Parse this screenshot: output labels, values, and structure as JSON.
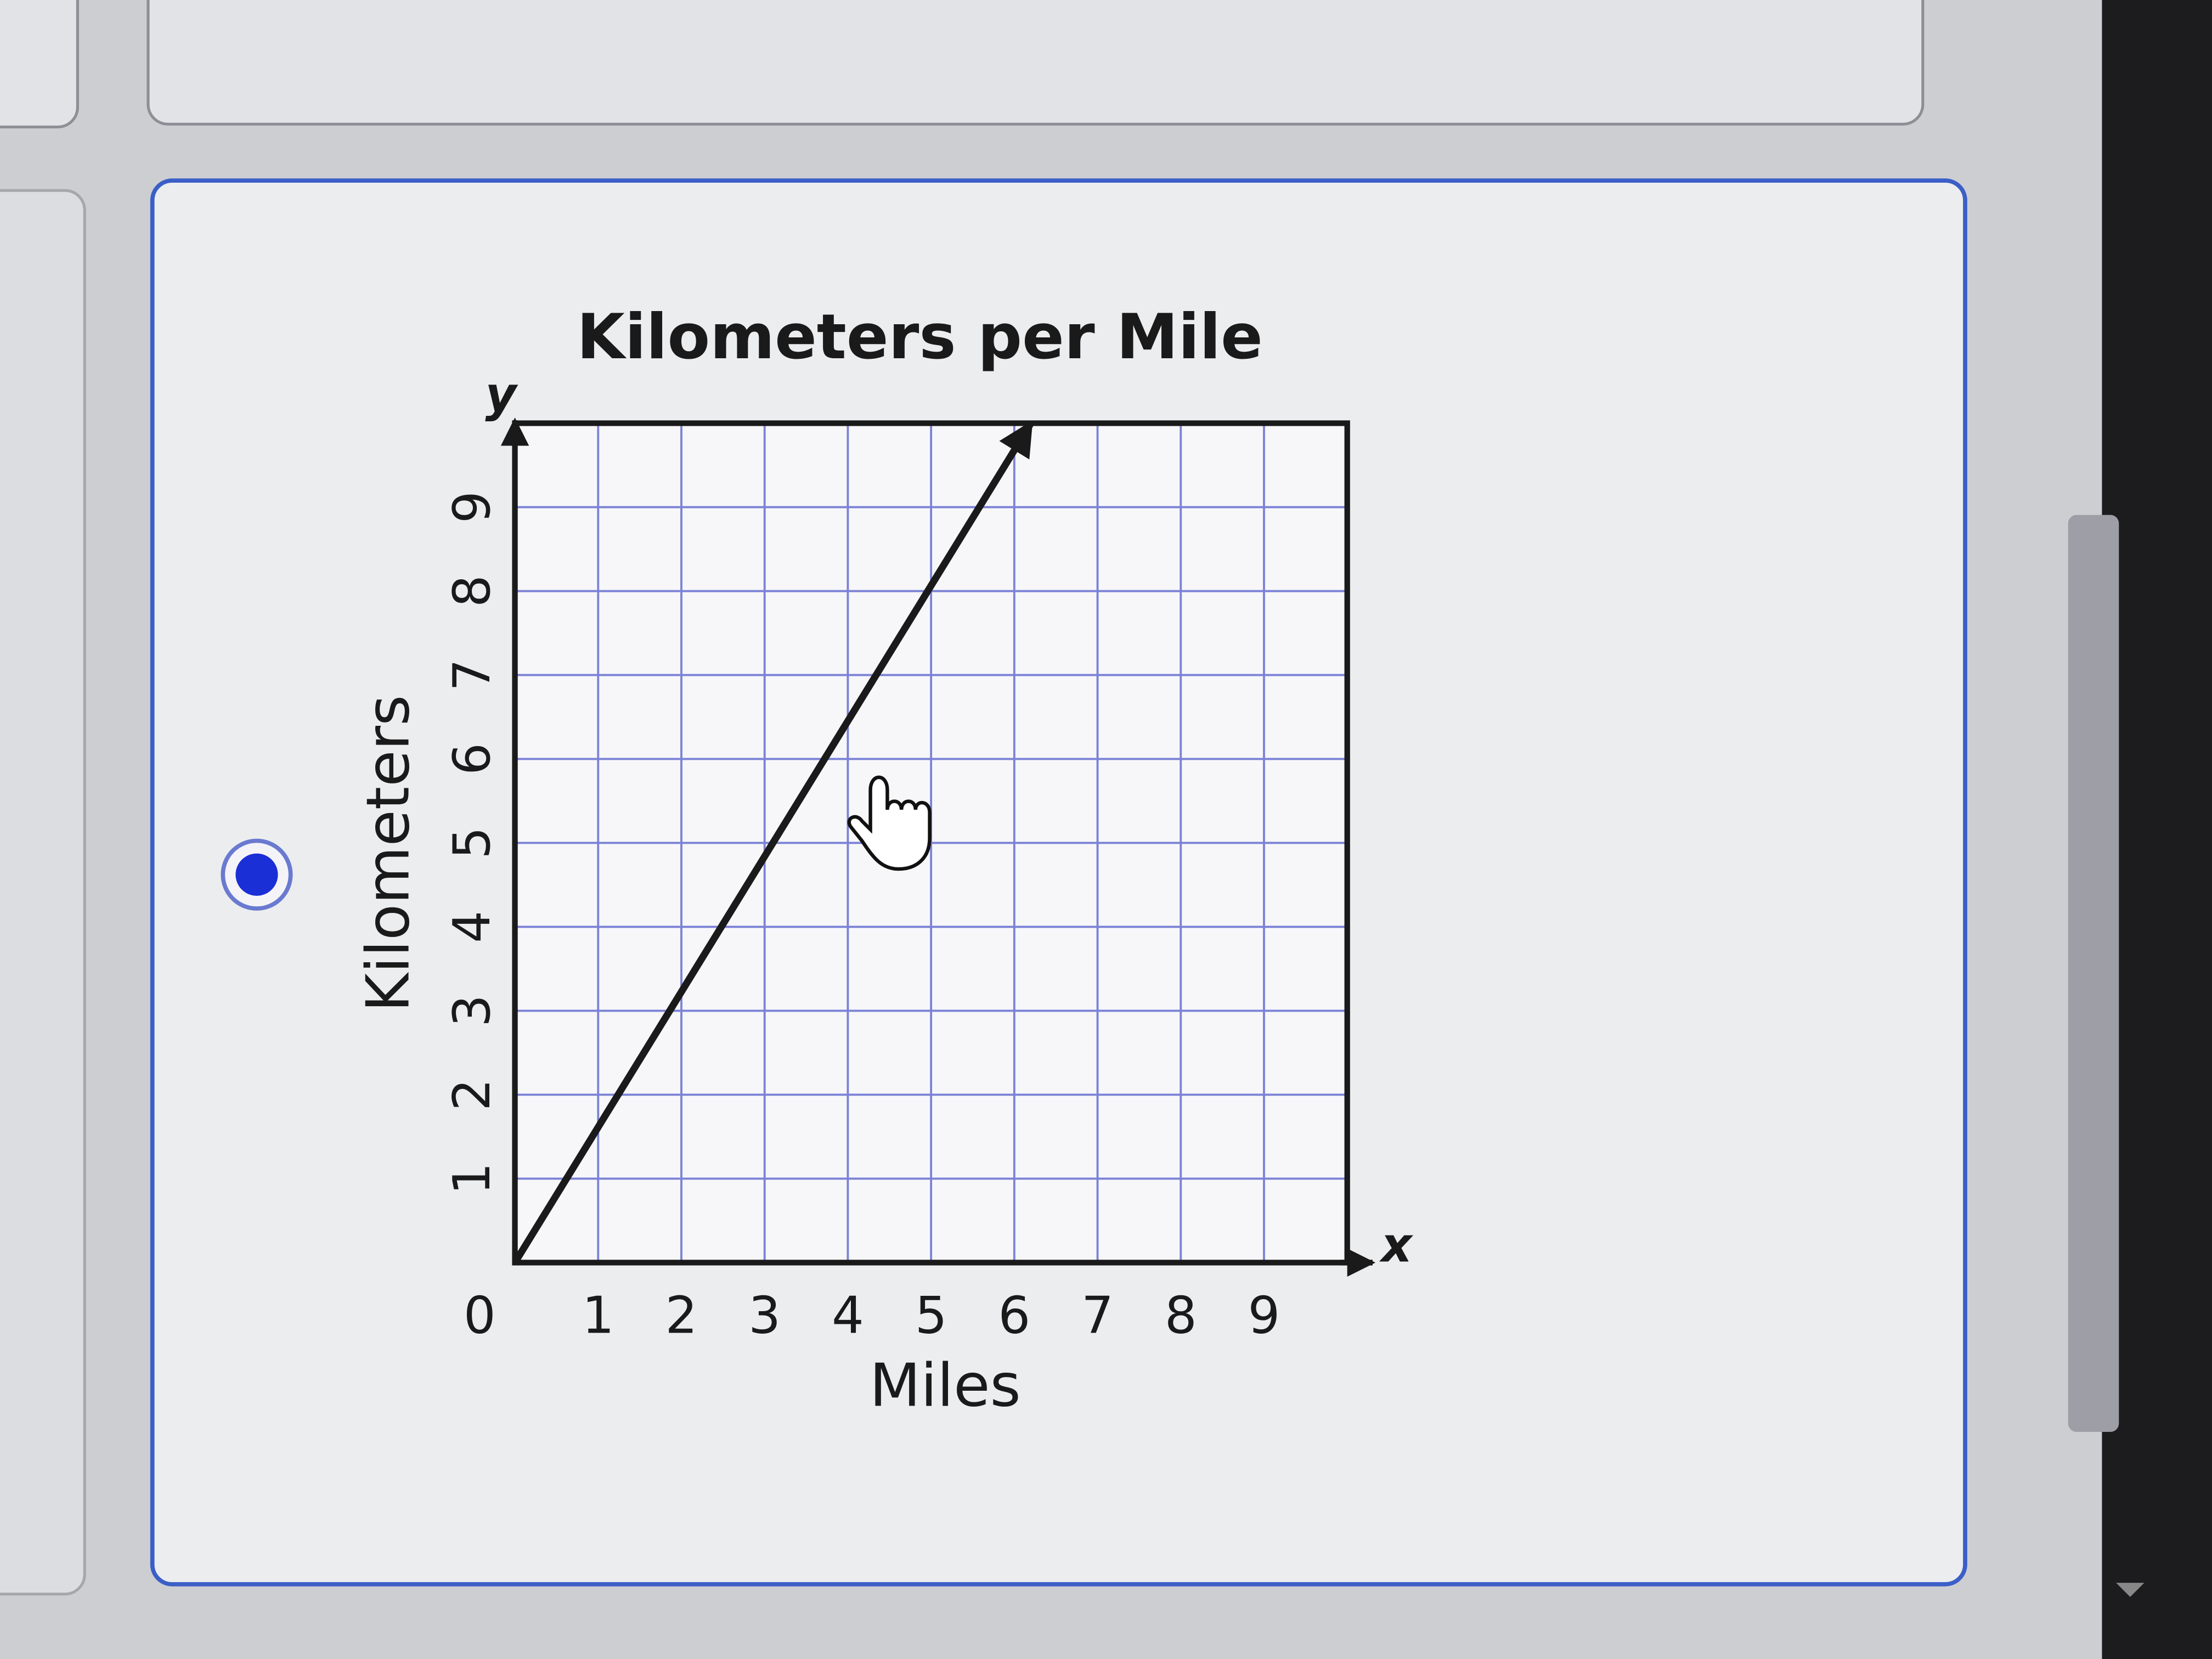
{
  "chart_data": {
    "type": "line",
    "title": "Kilometers per Mile",
    "x_label": "Miles",
    "y_label": "Kilometers",
    "x_axis_name": "x",
    "y_axis_name": "y",
    "x": [
      0,
      6.2
    ],
    "series": [
      {
        "name": "Kilometers",
        "color": "#1a1a1a",
        "values": [
          0,
          10
        ]
      }
    ],
    "xlim": [
      0,
      10
    ],
    "ylim": [
      0,
      10
    ],
    "xticks": [
      0,
      1,
      2,
      3,
      4,
      5,
      6,
      7,
      8,
      9
    ],
    "yticks": [
      1,
      2,
      3,
      4,
      5,
      6,
      7,
      8,
      9
    ],
    "grid": true,
    "grid_color": "#7b82d6"
  }
}
